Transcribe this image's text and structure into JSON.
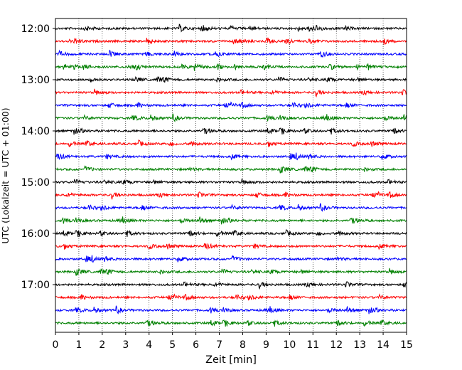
{
  "chart_data": {
    "type": "line",
    "title": "",
    "xlabel": "Zeit  [min]",
    "ylabel": "UTC (Lokalzeit = UTC + 01:00)",
    "xlim": [
      0,
      15
    ],
    "x_ticks": [
      "0",
      "1",
      "2",
      "3",
      "4",
      "5",
      "6",
      "7",
      "8",
      "9",
      "10",
      "11",
      "12",
      "13",
      "14",
      "15"
    ],
    "y_tick_labels": [
      "12:00",
      "13:00",
      "14:00",
      "15:00",
      "16:00",
      "17:00"
    ],
    "grid": "vertical dotted at each minute",
    "legend": "none",
    "trace_interval_minutes": 15,
    "series": [
      {
        "start": "12:00",
        "color": "#000000"
      },
      {
        "start": "12:15",
        "color": "#ff0000"
      },
      {
        "start": "12:30",
        "color": "#0000ff"
      },
      {
        "start": "12:45",
        "color": "#008000"
      },
      {
        "start": "13:00",
        "color": "#000000"
      },
      {
        "start": "13:15",
        "color": "#ff0000"
      },
      {
        "start": "13:30",
        "color": "#0000ff"
      },
      {
        "start": "13:45",
        "color": "#008000"
      },
      {
        "start": "14:00",
        "color": "#000000"
      },
      {
        "start": "14:15",
        "color": "#ff0000"
      },
      {
        "start": "14:30",
        "color": "#0000ff"
      },
      {
        "start": "14:45",
        "color": "#008000"
      },
      {
        "start": "15:00",
        "color": "#000000"
      },
      {
        "start": "15:15",
        "color": "#ff0000"
      },
      {
        "start": "15:30",
        "color": "#0000ff"
      },
      {
        "start": "15:45",
        "color": "#008000"
      },
      {
        "start": "16:00",
        "color": "#000000"
      },
      {
        "start": "16:15",
        "color": "#ff0000"
      },
      {
        "start": "16:30",
        "color": "#0000ff"
      },
      {
        "start": "16:45",
        "color": "#008000"
      },
      {
        "start": "17:00",
        "color": "#000000"
      },
      {
        "start": "17:15",
        "color": "#ff0000"
      },
      {
        "start": "17:30",
        "color": "#0000ff"
      },
      {
        "start": "17:45",
        "color": "#008000"
      }
    ]
  }
}
